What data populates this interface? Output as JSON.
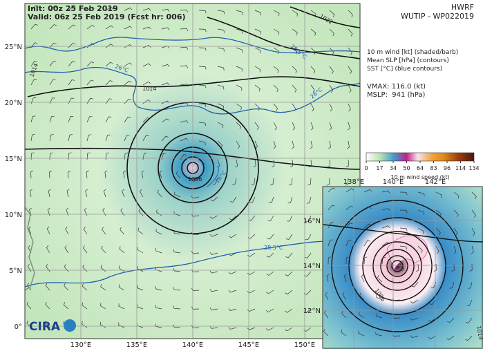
{
  "header": {
    "init": "Init: 00z 25 Feb 2019",
    "valid": "Valid: 06z 25 Feb 2019 (Fcst hr: 006)",
    "model": "HWRF",
    "storm": "WUTIP - WP022019"
  },
  "legend": {
    "lines": [
      "10 m wind [kt] (shaded/barb)",
      "Mean SLP [hPa] (contours)",
      "SST [°C] (blue contours)"
    ],
    "vmax": "VMAX: 116.0 (kt)",
    "mslp": "MSLP:  941 (hPa)"
  },
  "colorbar": {
    "ticks": [
      "0",
      "17",
      "34",
      "50",
      "64",
      "83",
      "96",
      "114",
      "134"
    ],
    "label": "10 m wind speed (kt)"
  },
  "map": {
    "lat_labels": [
      "25°N",
      "20°N",
      "15°N",
      "10°N",
      "5°N",
      "0°"
    ],
    "lon_labels": [
      "130°E",
      "135°E",
      "140°E",
      "145°E",
      "150°E"
    ],
    "contour_labels": [
      "1014",
      "1014",
      "1006",
      "1022",
      "26°C",
      "26°C",
      "28.5°C",
      "28.5°C",
      "26°C"
    ]
  },
  "inset": {
    "lon_labels": [
      "138°E",
      "140°E",
      "142°E"
    ],
    "lat_labels": [
      "16°N",
      "14°N",
      "12°N"
    ],
    "contour_labels": [
      "1006",
      "1014"
    ]
  },
  "logo": "CIRA"
}
